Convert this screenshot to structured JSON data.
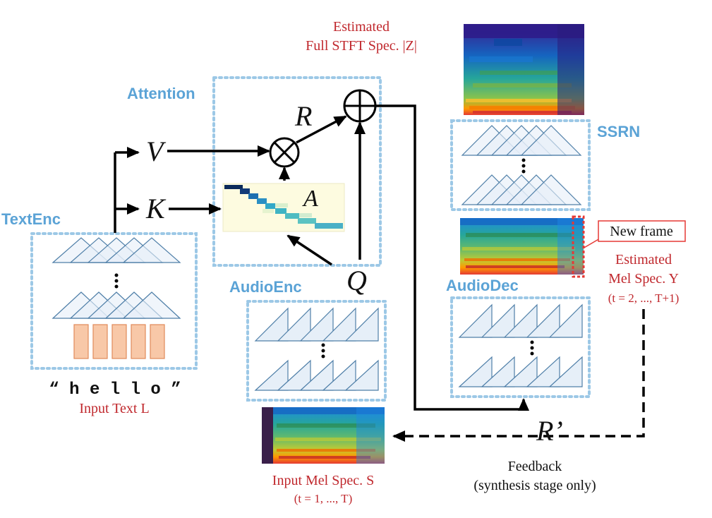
{
  "labels": {
    "text_enc": "TextEnc",
    "attention": "Attention",
    "audio_enc": "AudioEnc",
    "audio_dec": "AudioDec",
    "ssrn": "SSRN",
    "new_frame": "New frame",
    "estimated_full_line1": "Estimated",
    "estimated_full_line2": "Full STFT Spec. |Z|",
    "estimated_mel_line1": "Estimated",
    "estimated_mel_line2": "Mel Spec. Y",
    "estimated_mel_line3": "(t = 2, ..., T+1)",
    "input_text_quote": "“ h e l l o ”",
    "input_text": "Input Text L",
    "input_mel_line1": "Input Mel Spec. S",
    "input_mel_line2": "(t = 1, ..., T)",
    "feedback_line1": "Feedback",
    "feedback_line2": "(synthesis stage only)"
  },
  "variables": {
    "v": "V",
    "k": "K",
    "r": "R",
    "a": "A",
    "q": "Q",
    "r_prime": "R’"
  },
  "operators": {
    "multiply": "⊗",
    "add": "⊕"
  },
  "colors": {
    "label_blue": "#5ba3d6",
    "label_red": "#c0282d",
    "dotted_box": "#9cc8e6",
    "embedding_fill": "#f8c8a8",
    "embedding_stroke": "#e08a5a"
  }
}
